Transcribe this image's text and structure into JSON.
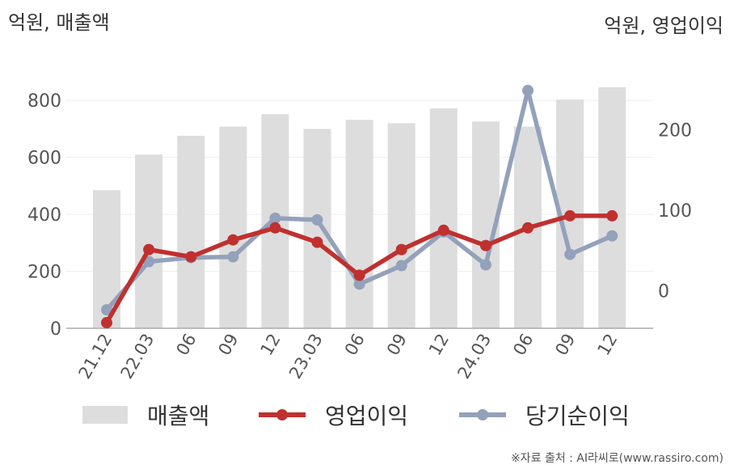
{
  "chart_data": {
    "type": "bar",
    "left_axis_label": "억원, 매출액",
    "right_axis_label": "억원, 영업이익",
    "categories": [
      "21.12",
      "22.03",
      "06",
      "09",
      "12",
      "23.03",
      "06",
      "09",
      "12",
      "24.03",
      "06",
      "09",
      "12"
    ],
    "left_ylim": [
      0,
      880
    ],
    "left_ticks": [
      0,
      200,
      400,
      600,
      800
    ],
    "right_ylim": [
      -47,
      265
    ],
    "right_ticks": [
      0,
      100,
      200
    ],
    "series": [
      {
        "name": "매출액",
        "kind": "bar",
        "axis": "left",
        "color": "#dddddd",
        "values": [
          485,
          610,
          676,
          708,
          752,
          700,
          732,
          720,
          772,
          726,
          708,
          803,
          846
        ]
      },
      {
        "name": "영업이익",
        "kind": "line",
        "axis": "right",
        "color": "#c0302e",
        "values": [
          -40,
          51,
          42,
          63,
          78,
          60,
          19,
          51,
          75,
          56,
          78,
          93,
          93
        ]
      },
      {
        "name": "당기순이익",
        "kind": "line",
        "axis": "right",
        "color": "#93a1ba",
        "values": [
          -24,
          36,
          41,
          42,
          90,
          88,
          8,
          31,
          73,
          32,
          249,
          45,
          68
        ]
      }
    ],
    "grid": true,
    "legend_position": "bottom"
  },
  "source_text": "※자료 출처 : AI라씨로(www.rassiro.com)"
}
